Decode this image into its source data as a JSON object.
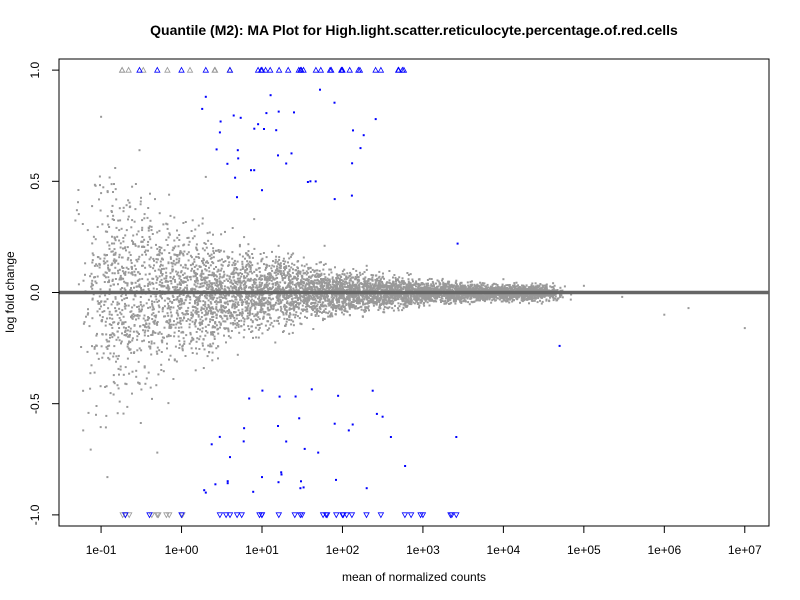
{
  "chart_data": {
    "type": "scatter",
    "title": "Quantile (M2): MA Plot for High.light.scatter.reticulocyte.percentage.of.red.cells",
    "xlabel": "mean of normalized counts",
    "ylabel": "log fold change",
    "xscale": "log10",
    "xlim": [
      0.03,
      20000000
    ],
    "ylim": [
      -1.05,
      1.05
    ],
    "x_ticks": [
      0.1,
      1,
      10,
      100,
      1000,
      10000,
      100000,
      1000000,
      10000000
    ],
    "x_tick_labels": [
      "1e-01",
      "1e+00",
      "1e+01",
      "1e+02",
      "1e+03",
      "1e+04",
      "1e+05",
      "1e+06",
      "1e+07"
    ],
    "y_ticks": [
      -1.0,
      -0.5,
      0.0,
      0.5,
      1.0
    ],
    "y_tick_labels": [
      "-1.0",
      "-0.5",
      "0.0",
      "0.5",
      "1.0"
    ],
    "reference_line": {
      "y": 0,
      "color": "#666666"
    },
    "colors": {
      "non_significant": "#999999",
      "significant": "#0000ff",
      "axis": "#000000"
    },
    "series": [
      {
        "name": "non-significant",
        "color": "#999999",
        "points": [
          [
            0.05,
            0.37
          ],
          [
            0.06,
            -0.62
          ],
          [
            0.09,
            0.12
          ],
          [
            0.1,
            0.79
          ],
          [
            0.12,
            -0.83
          ],
          [
            0.15,
            0.56
          ],
          [
            0.2,
            -0.41
          ],
          [
            0.3,
            0.64
          ],
          [
            0.4,
            0.25
          ],
          [
            0.5,
            -0.72
          ],
          [
            0.7,
            0.44
          ],
          [
            1,
            0.18
          ],
          [
            1.5,
            -0.35
          ],
          [
            2,
            0.52
          ],
          [
            3,
            0.05
          ],
          [
            5,
            -0.28
          ],
          [
            8,
            0.33
          ],
          [
            15,
            0.09
          ],
          [
            30,
            -0.14
          ],
          [
            60,
            0.21
          ],
          [
            100,
            -0.06
          ],
          [
            200,
            0.12
          ],
          [
            500,
            -0.08
          ],
          [
            1000,
            0.04
          ],
          [
            3000,
            -0.03
          ],
          [
            10000,
            0.06
          ],
          [
            30000,
            -0.05
          ],
          [
            100000,
            0.03
          ],
          [
            300000,
            -0.02
          ],
          [
            1000000,
            -0.1
          ],
          [
            2000000,
            -0.07
          ],
          [
            10000000,
            -0.16
          ]
        ]
      },
      {
        "name": "significant",
        "color": "#0000ff",
        "points": [
          [
            2,
            0.88
          ],
          [
            3,
            0.72
          ],
          [
            5,
            0.64
          ],
          [
            8,
            0.55
          ],
          [
            10,
            0.46
          ],
          [
            15,
            0.73
          ],
          [
            20,
            0.58
          ],
          [
            25,
            0.81
          ],
          [
            40,
            0.5
          ],
          [
            80,
            0.42
          ],
          [
            2,
            -0.9
          ],
          [
            4,
            -0.74
          ],
          [
            6,
            -0.61
          ],
          [
            10,
            -0.83
          ],
          [
            20,
            -0.67
          ],
          [
            30,
            -0.88
          ],
          [
            50,
            -0.72
          ],
          [
            80,
            -0.59
          ],
          [
            120,
            -0.62
          ],
          [
            200,
            -0.88
          ],
          [
            400,
            -0.65
          ],
          [
            600,
            -0.78
          ],
          [
            2600,
            -0.65
          ],
          [
            2700,
            0.22
          ],
          [
            50000,
            -0.24
          ]
        ]
      },
      {
        "name": "clipped-above",
        "color": "#0000ff",
        "marker": "triangle-up",
        "points": [
          [
            0.3,
            1.0
          ],
          [
            0.5,
            1.0
          ],
          [
            1,
            1.0
          ],
          [
            2,
            1.0
          ],
          [
            4,
            1.0
          ],
          [
            10,
            1.0
          ],
          [
            30,
            1.0
          ],
          [
            100,
            1.0
          ],
          [
            300,
            1.0
          ],
          [
            500,
            1.0
          ]
        ]
      },
      {
        "name": "clipped-below",
        "color": "#0000ff",
        "marker": "triangle-down",
        "points": [
          [
            0.2,
            -1.0
          ],
          [
            0.4,
            -1.0
          ],
          [
            1,
            -1.0
          ],
          [
            3,
            -1.0
          ],
          [
            10,
            -1.0
          ],
          [
            30,
            -1.0
          ],
          [
            100,
            -1.0
          ],
          [
            300,
            -1.0
          ],
          [
            1000,
            -1.0
          ],
          [
            2600,
            -1.0
          ]
        ]
      }
    ]
  }
}
